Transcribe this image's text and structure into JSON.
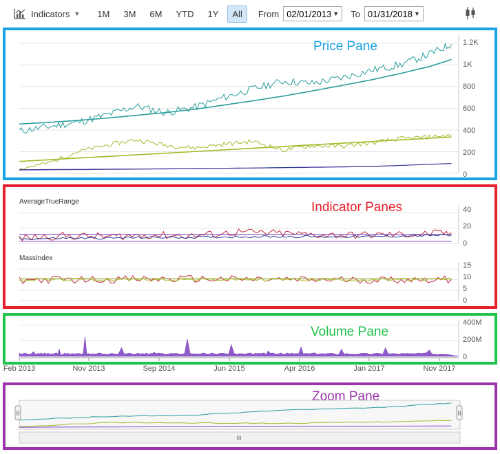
{
  "toolbar": {
    "indicators_label": "Indicators",
    "ranges": [
      "1M",
      "3M",
      "6M",
      "YTD",
      "1Y",
      "All"
    ],
    "active_range": "All",
    "from_label": "From",
    "from_value": "02/01/2013",
    "to_label": "To",
    "to_value": "01/31/2018",
    "chart_type_icon": "candlestick-icon"
  },
  "colors": {
    "price_border": "#1aa2e6",
    "indicator_border": "#e5212b",
    "volume_border": "#1fc24a",
    "zoom_border": "#9a36a9",
    "teal": "#2a9d9c",
    "olive": "#a5b82a",
    "purple": "#7a3fbf",
    "crimson": "#c0283a",
    "navy": "#2b3a8f"
  },
  "chart_data": [
    {
      "type": "line",
      "pane": "price",
      "title": "Price Pane",
      "y_ticks": [
        "0",
        "200",
        "400",
        "600",
        "800",
        "1K",
        "1.2K"
      ],
      "ylim": [
        0,
        1250
      ],
      "x_range": [
        "2013-02-01",
        "2018-01-31"
      ],
      "series": [
        {
          "color": "#2a9d9c",
          "x": [
            "2013-02",
            "2013-06",
            "2013-10",
            "2014-02",
            "2014-06",
            "2014-10",
            "2015-02",
            "2015-06",
            "2015-10",
            "2016-02",
            "2016-06",
            "2016-10",
            "2017-02",
            "2017-06",
            "2017-10",
            "2018-01"
          ],
          "values": [
            390,
            430,
            470,
            540,
            620,
            560,
            610,
            700,
            780,
            850,
            830,
            880,
            950,
            1000,
            1100,
            1190
          ]
        },
        {
          "color": "#2a9d9c",
          "trend": true,
          "x": [
            "2013-02",
            "2013-06",
            "2013-10",
            "2014-02",
            "2014-06",
            "2014-10",
            "2015-02",
            "2015-06",
            "2015-10",
            "2016-02",
            "2016-06",
            "2016-10",
            "2017-02",
            "2017-06",
            "2017-10",
            "2018-01"
          ],
          "values": [
            455,
            470,
            488,
            510,
            535,
            560,
            592,
            630,
            670,
            712,
            760,
            810,
            862,
            920,
            985,
            1050
          ]
        },
        {
          "color": "#a5b82a",
          "x": [
            "2013-02",
            "2013-06",
            "2013-10",
            "2014-02",
            "2014-06",
            "2014-10",
            "2015-02",
            "2015-06",
            "2015-10",
            "2016-02",
            "2016-06",
            "2016-10",
            "2017-02",
            "2017-06",
            "2017-10",
            "2018-01"
          ],
          "values": [
            40,
            95,
            200,
            260,
            310,
            260,
            235,
            270,
            295,
            215,
            255,
            250,
            280,
            320,
            335,
            350
          ]
        },
        {
          "color": "#a5b82a",
          "trend": true,
          "x": [
            "2013-02",
            "2018-01"
          ],
          "values": [
            110,
            335
          ]
        },
        {
          "color": "#7a3fbf",
          "x": [
            "2013-02",
            "2014-06",
            "2015-10",
            "2017-02",
            "2018-01"
          ],
          "values": [
            30,
            38,
            48,
            62,
            92
          ]
        },
        {
          "color": "#2b3a8f",
          "x": [
            "2013-02",
            "2014-06",
            "2015-10",
            "2017-02",
            "2018-01"
          ],
          "values": [
            34,
            40,
            50,
            64,
            90
          ]
        }
      ]
    },
    {
      "type": "line",
      "pane": "indicator",
      "title": "Indicator Panes",
      "indicator": "AverageTrueRange",
      "y_ticks": [
        "0",
        "20",
        "40"
      ],
      "ylim": [
        0,
        45
      ],
      "series": [
        {
          "color": "#c0283a",
          "x": [
            "2013-02",
            "2013-08",
            "2014-02",
            "2014-08",
            "2015-02",
            "2015-08",
            "2016-02",
            "2016-08",
            "2017-02",
            "2017-08",
            "2018-01"
          ],
          "values": [
            7,
            10,
            9,
            11,
            10,
            15,
            13,
            11,
            11,
            12,
            14
          ]
        },
        {
          "color": "#7a3fbf",
          "x": [
            "2013-02",
            "2018-01"
          ],
          "values": [
            12,
            12
          ]
        },
        {
          "color": "#2b3a8f",
          "x": [
            "2013-02",
            "2013-08",
            "2014-02",
            "2014-08",
            "2015-02",
            "2015-08",
            "2016-02",
            "2016-08",
            "2017-02",
            "2017-08",
            "2018-01"
          ],
          "values": [
            6,
            7,
            7,
            8,
            8,
            9,
            9,
            9,
            9,
            10,
            11
          ]
        },
        {
          "color": "#7a3fbf",
          "x": [
            "2013-02",
            "2018-01"
          ],
          "values": [
            3,
            3
          ]
        }
      ]
    },
    {
      "type": "line",
      "pane": "indicator",
      "indicator": "MassIndex",
      "y_ticks": [
        "0",
        "5",
        "10",
        "15"
      ],
      "ylim": [
        0,
        17
      ],
      "series": [
        {
          "color": "#c0283a",
          "x": [
            "2013-02",
            "2014-02",
            "2015-02",
            "2016-02",
            "2017-02",
            "2018-01"
          ],
          "values": [
            9.8,
            10.1,
            10.3,
            9.9,
            9.9,
            10.1
          ]
        },
        {
          "color": "#a5b82a",
          "x": [
            "2013-02",
            "2014-02",
            "2015-02",
            "2016-02",
            "2017-02",
            "2018-01"
          ],
          "values": [
            9.9,
            10.0,
            10.0,
            10.0,
            9.9,
            10.0
          ]
        },
        {
          "color": "#a5b82a",
          "x": [
            "2013-02",
            "2018-01"
          ],
          "values": [
            10.5,
            10.5
          ]
        }
      ]
    },
    {
      "type": "area",
      "pane": "volume",
      "title": "Volume Pane",
      "y_ticks": [
        "0",
        "200M",
        "400M"
      ],
      "ylim": [
        0,
        440
      ],
      "unit": "M",
      "series": [
        {
          "color": "#7a3fbf",
          "x": [
            "2013-02",
            "2013-06",
            "2013-09",
            "2014-01",
            "2014-07",
            "2014-10",
            "2015-04",
            "2015-10",
            "2016-02",
            "2016-07",
            "2017-01",
            "2017-07",
            "2018-01"
          ],
          "values": [
            60,
            95,
            250,
            110,
            55,
            220,
            150,
            70,
            120,
            90,
            110,
            80,
            90
          ]
        }
      ]
    },
    {
      "type": "line",
      "pane": "zoom",
      "title": "Zoom Pane",
      "series": [
        {
          "color": "#2a9d9c",
          "x": [
            "2013-02",
            "2014-02",
            "2015-02",
            "2016-02",
            "2017-02",
            "2018-01"
          ],
          "values": [
            390,
            540,
            610,
            850,
            950,
            1190
          ]
        },
        {
          "color": "#a5b82a",
          "x": [
            "2013-02",
            "2014-02",
            "2015-02",
            "2016-02",
            "2017-02",
            "2018-01"
          ],
          "values": [
            40,
            260,
            235,
            215,
            280,
            350
          ]
        },
        {
          "color": "#7a3fbf",
          "x": [
            "2013-02",
            "2018-01"
          ],
          "values": [
            30,
            92
          ]
        }
      ]
    }
  ],
  "x_axis": {
    "labels": [
      "Feb 2013",
      "Nov 2013",
      "Sep 2014",
      "Jun 2015",
      "Apr 2016",
      "Jan 2017",
      "Nov 2017"
    ]
  }
}
